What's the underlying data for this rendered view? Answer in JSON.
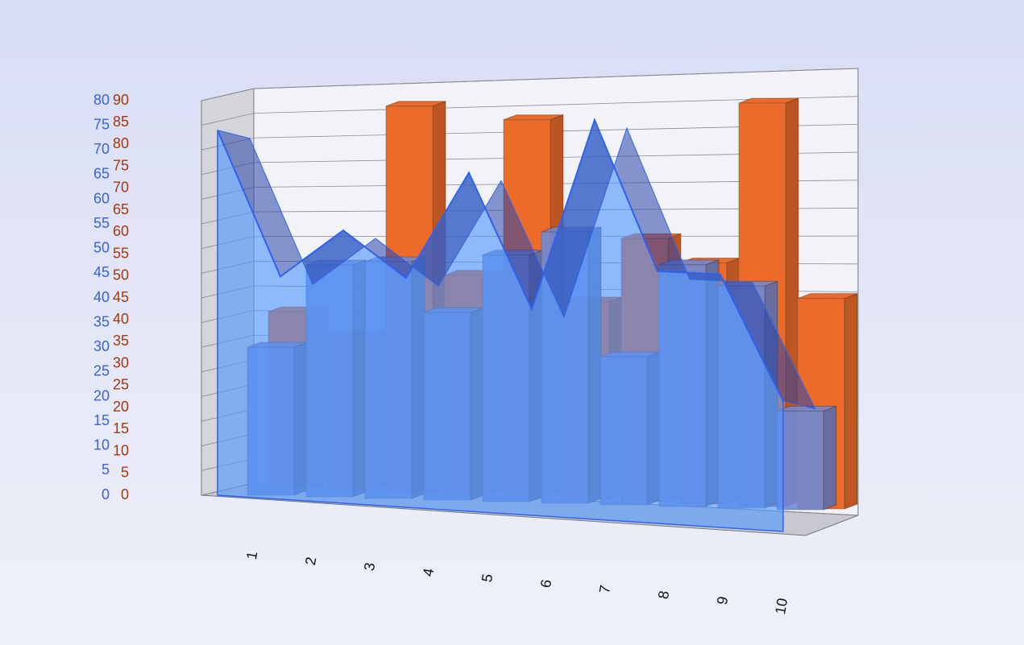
{
  "chart_data": {
    "type": "bar_area_3d",
    "categories": [
      "1",
      "2",
      "3",
      "4",
      "5",
      "6",
      "7",
      "8",
      "9",
      "10"
    ],
    "ylim": [
      0,
      80
    ],
    "yticks": [
      0,
      5,
      10,
      15,
      20,
      25,
      30,
      35,
      40,
      45,
      50,
      55,
      60,
      65,
      70,
      75,
      80
    ],
    "y2lim": [
      0,
      90
    ],
    "y2ticks": [
      0,
      5,
      10,
      15,
      20,
      25,
      30,
      35,
      40,
      45,
      50,
      55,
      60,
      65,
      70,
      75,
      80,
      85,
      90
    ],
    "ycolor": "#3a62e0",
    "y2color": "#a8380c",
    "grid": true,
    "series": [
      {
        "type": "bar",
        "axis": "y2",
        "color": "#ec6a2a",
        "values": [
          40,
          35,
          88,
          50,
          86,
          45,
          60,
          55,
          92,
          48
        ]
      },
      {
        "type": "bar",
        "color": "#6f8ad6",
        "values": [
          30,
          47,
          48,
          38,
          50,
          55,
          30,
          49,
          45,
          20
        ]
      },
      {
        "type": "area",
        "color": "#4f96ff",
        "values": [
          74,
          45,
          55,
          46,
          68,
          41,
          80,
          50,
          50,
          25
        ]
      }
    ]
  }
}
